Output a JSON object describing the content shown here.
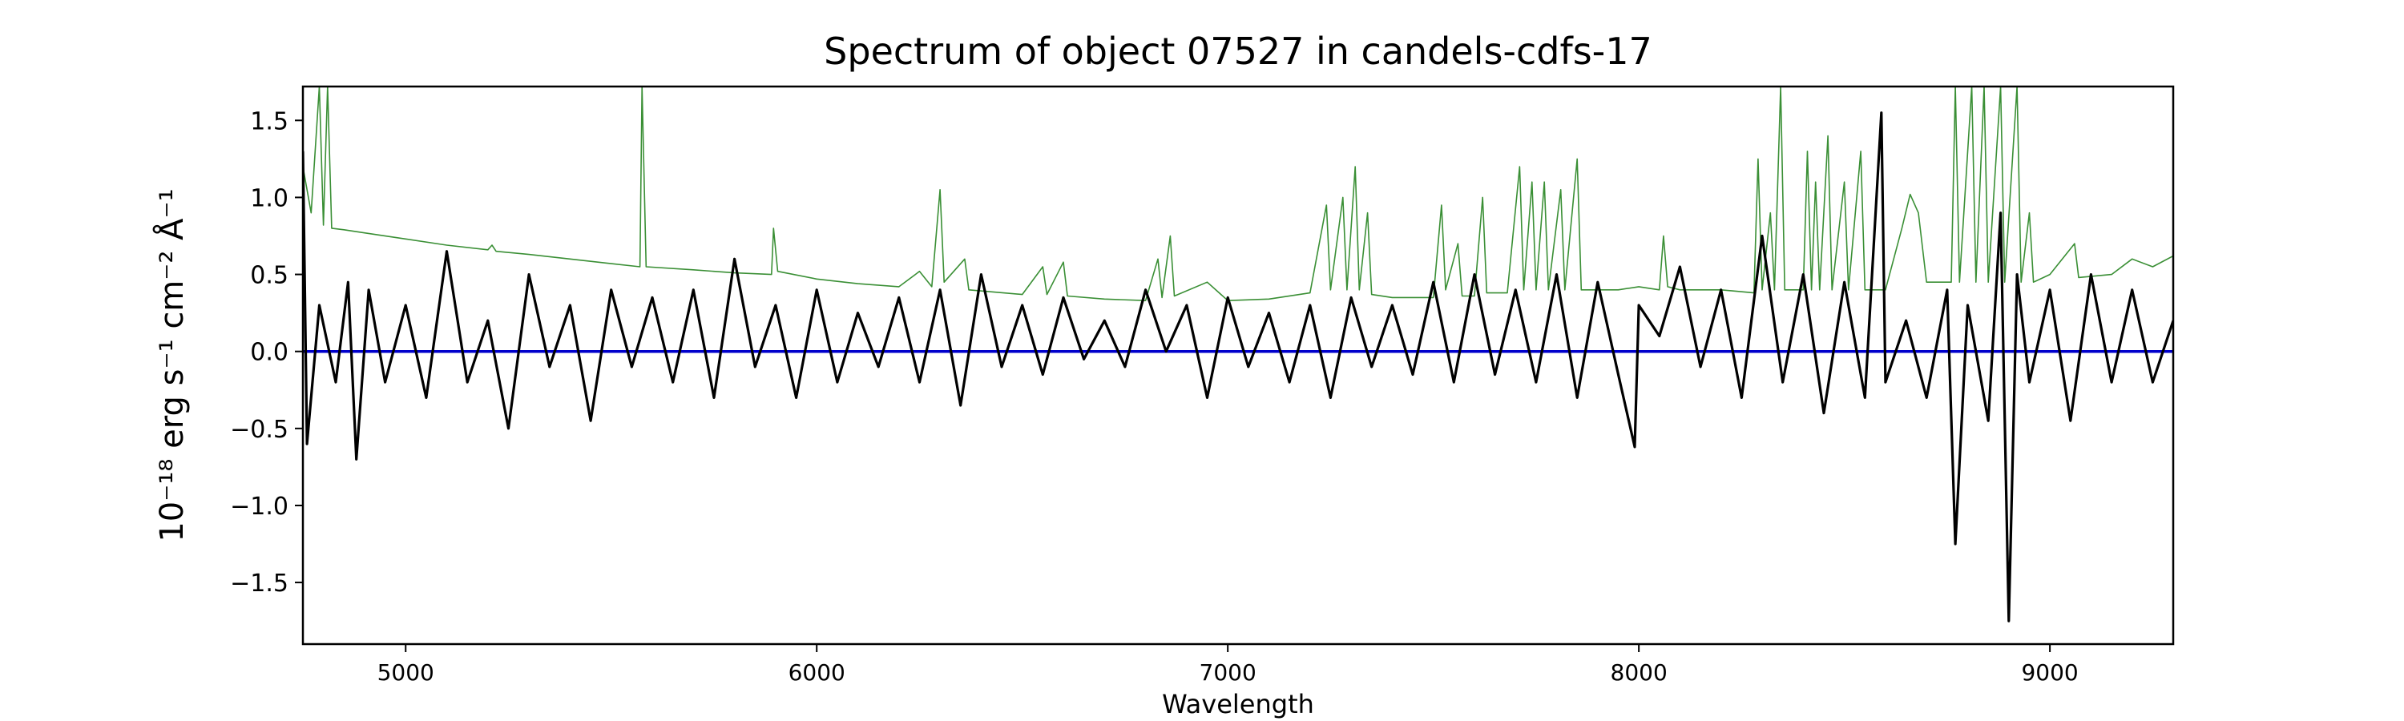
{
  "chart_data": {
    "type": "line",
    "title": "Spectrum of object 07527 in candels-cdfs-17",
    "xlabel": "Wavelength",
    "ylabel": "10⁻¹⁸ erg s⁻¹ cm⁻² Å⁻¹",
    "xlim": [
      4750,
      9300
    ],
    "ylim": [
      -1.9,
      1.72
    ],
    "x_ticks": [
      5000,
      6000,
      7000,
      8000,
      9000
    ],
    "x_tick_labels": [
      "5000",
      "6000",
      "7000",
      "8000",
      "9000"
    ],
    "y_ticks": [
      -1.5,
      -1.0,
      -0.5,
      0.0,
      0.5,
      1.0,
      1.5
    ],
    "y_tick_labels": [
      "−1.5",
      "−1.0",
      "−0.5",
      "0.0",
      "0.5",
      "1.0",
      "1.5"
    ],
    "grid": false,
    "legend": "none",
    "series": [
      {
        "color": "#3a8f35",
        "values": [
          [
            4750,
            1.2
          ],
          [
            4770,
            0.9
          ],
          [
            4790,
            1.72
          ],
          [
            4800,
            0.82
          ],
          [
            4810,
            1.72
          ],
          [
            4820,
            0.8
          ],
          [
            4850,
            0.79
          ],
          [
            4900,
            0.77
          ],
          [
            5000,
            0.73
          ],
          [
            5100,
            0.69
          ],
          [
            5200,
            0.66
          ],
          [
            5210,
            0.69
          ],
          [
            5220,
            0.65
          ],
          [
            5300,
            0.63
          ],
          [
            5400,
            0.6
          ],
          [
            5500,
            0.57
          ],
          [
            5570,
            0.55
          ],
          [
            5575,
            1.72
          ],
          [
            5585,
            0.55
          ],
          [
            5700,
            0.53
          ],
          [
            5800,
            0.51
          ],
          [
            5890,
            0.5
          ],
          [
            5895,
            0.8
          ],
          [
            5905,
            0.52
          ],
          [
            6000,
            0.47
          ],
          [
            6100,
            0.44
          ],
          [
            6200,
            0.42
          ],
          [
            6250,
            0.52
          ],
          [
            6280,
            0.42
          ],
          [
            6300,
            1.05
          ],
          [
            6310,
            0.45
          ],
          [
            6360,
            0.6
          ],
          [
            6370,
            0.4
          ],
          [
            6500,
            0.37
          ],
          [
            6550,
            0.55
          ],
          [
            6560,
            0.37
          ],
          [
            6600,
            0.58
          ],
          [
            6610,
            0.36
          ],
          [
            6700,
            0.34
          ],
          [
            6800,
            0.33
          ],
          [
            6830,
            0.6
          ],
          [
            6840,
            0.35
          ],
          [
            6860,
            0.75
          ],
          [
            6870,
            0.36
          ],
          [
            6950,
            0.45
          ],
          [
            7000,
            0.33
          ],
          [
            7100,
            0.34
          ],
          [
            7200,
            0.38
          ],
          [
            7240,
            0.95
          ],
          [
            7250,
            0.4
          ],
          [
            7280,
            1.0
          ],
          [
            7290,
            0.4
          ],
          [
            7310,
            1.2
          ],
          [
            7320,
            0.4
          ],
          [
            7340,
            0.9
          ],
          [
            7350,
            0.37
          ],
          [
            7400,
            0.35
          ],
          [
            7500,
            0.35
          ],
          [
            7520,
            0.95
          ],
          [
            7530,
            0.4
          ],
          [
            7560,
            0.7
          ],
          [
            7570,
            0.36
          ],
          [
            7600,
            0.36
          ],
          [
            7620,
            1.0
          ],
          [
            7630,
            0.38
          ],
          [
            7680,
            0.38
          ],
          [
            7710,
            1.2
          ],
          [
            7720,
            0.4
          ],
          [
            7740,
            1.1
          ],
          [
            7750,
            0.4
          ],
          [
            7770,
            1.1
          ],
          [
            7780,
            0.4
          ],
          [
            7810,
            1.05
          ],
          [
            7820,
            0.4
          ],
          [
            7850,
            1.25
          ],
          [
            7860,
            0.4
          ],
          [
            7900,
            0.4
          ],
          [
            7950,
            0.4
          ],
          [
            8000,
            0.42
          ],
          [
            8050,
            0.4
          ],
          [
            8060,
            0.75
          ],
          [
            8070,
            0.42
          ],
          [
            8100,
            0.4
          ],
          [
            8200,
            0.4
          ],
          [
            8280,
            0.38
          ],
          [
            8290,
            1.25
          ],
          [
            8300,
            0.4
          ],
          [
            8320,
            0.9
          ],
          [
            8330,
            0.4
          ],
          [
            8345,
            1.72
          ],
          [
            8355,
            0.4
          ],
          [
            8400,
            0.4
          ],
          [
            8410,
            1.3
          ],
          [
            8420,
            0.4
          ],
          [
            8430,
            1.1
          ],
          [
            8440,
            0.4
          ],
          [
            8460,
            1.4
          ],
          [
            8470,
            0.4
          ],
          [
            8500,
            1.1
          ],
          [
            8510,
            0.4
          ],
          [
            8540,
            1.3
          ],
          [
            8550,
            0.4
          ],
          [
            8600,
            0.4
          ],
          [
            8640,
            0.8
          ],
          [
            8660,
            1.02
          ],
          [
            8680,
            0.9
          ],
          [
            8700,
            0.45
          ],
          [
            8760,
            0.45
          ],
          [
            8770,
            1.72
          ],
          [
            8780,
            0.45
          ],
          [
            8810,
            1.72
          ],
          [
            8820,
            0.45
          ],
          [
            8840,
            1.72
          ],
          [
            8850,
            0.45
          ],
          [
            8880,
            1.72
          ],
          [
            8890,
            0.45
          ],
          [
            8920,
            1.72
          ],
          [
            8930,
            0.45
          ],
          [
            8950,
            0.9
          ],
          [
            8960,
            0.45
          ],
          [
            9000,
            0.5
          ],
          [
            9060,
            0.7
          ],
          [
            9070,
            0.48
          ],
          [
            9150,
            0.5
          ],
          [
            9200,
            0.6
          ],
          [
            9250,
            0.55
          ],
          [
            9300,
            0.62
          ]
        ]
      },
      {
        "color": "#0000cc",
        "values": [
          [
            4750,
            0.0
          ],
          [
            9300,
            0.0
          ]
        ]
      },
      {
        "color": "#000000",
        "values": [
          [
            4750,
            1.3
          ],
          [
            4760,
            -0.6
          ],
          [
            4790,
            0.3
          ],
          [
            4830,
            -0.2
          ],
          [
            4860,
            0.45
          ],
          [
            4880,
            -0.7
          ],
          [
            4910,
            0.4
          ],
          [
            4950,
            -0.2
          ],
          [
            5000,
            0.3
          ],
          [
            5050,
            -0.3
          ],
          [
            5100,
            0.65
          ],
          [
            5150,
            -0.2
          ],
          [
            5200,
            0.2
          ],
          [
            5250,
            -0.5
          ],
          [
            5300,
            0.5
          ],
          [
            5350,
            -0.1
          ],
          [
            5400,
            0.3
          ],
          [
            5450,
            -0.45
          ],
          [
            5500,
            0.4
          ],
          [
            5550,
            -0.1
          ],
          [
            5600,
            0.35
          ],
          [
            5650,
            -0.2
          ],
          [
            5700,
            0.4
          ],
          [
            5750,
            -0.3
          ],
          [
            5800,
            0.6
          ],
          [
            5850,
            -0.1
          ],
          [
            5900,
            0.3
          ],
          [
            5950,
            -0.3
          ],
          [
            6000,
            0.4
          ],
          [
            6050,
            -0.2
          ],
          [
            6100,
            0.25
          ],
          [
            6150,
            -0.1
          ],
          [
            6200,
            0.35
          ],
          [
            6250,
            -0.2
          ],
          [
            6300,
            0.4
          ],
          [
            6350,
            -0.35
          ],
          [
            6400,
            0.5
          ],
          [
            6450,
            -0.1
          ],
          [
            6500,
            0.3
          ],
          [
            6550,
            -0.15
          ],
          [
            6600,
            0.35
          ],
          [
            6650,
            -0.05
          ],
          [
            6700,
            0.2
          ],
          [
            6750,
            -0.1
          ],
          [
            6800,
            0.4
          ],
          [
            6850,
            0.0
          ],
          [
            6900,
            0.3
          ],
          [
            6950,
            -0.3
          ],
          [
            7000,
            0.35
          ],
          [
            7050,
            -0.1
          ],
          [
            7100,
            0.25
          ],
          [
            7150,
            -0.2
          ],
          [
            7200,
            0.3
          ],
          [
            7250,
            -0.3
          ],
          [
            7300,
            0.35
          ],
          [
            7350,
            -0.1
          ],
          [
            7400,
            0.3
          ],
          [
            7450,
            -0.15
          ],
          [
            7500,
            0.45
          ],
          [
            7550,
            -0.2
          ],
          [
            7600,
            0.5
          ],
          [
            7650,
            -0.15
          ],
          [
            7700,
            0.4
          ],
          [
            7750,
            -0.2
          ],
          [
            7800,
            0.5
          ],
          [
            7850,
            -0.3
          ],
          [
            7900,
            0.45
          ],
          [
            7950,
            -0.15
          ],
          [
            7990,
            -0.62
          ],
          [
            8000,
            0.3
          ],
          [
            8050,
            0.1
          ],
          [
            8100,
            0.55
          ],
          [
            8150,
            -0.1
          ],
          [
            8200,
            0.4
          ],
          [
            8250,
            -0.3
          ],
          [
            8300,
            0.75
          ],
          [
            8350,
            -0.2
          ],
          [
            8400,
            0.5
          ],
          [
            8450,
            -0.4
          ],
          [
            8500,
            0.45
          ],
          [
            8550,
            -0.3
          ],
          [
            8590,
            1.55
          ],
          [
            8600,
            -0.2
          ],
          [
            8650,
            0.2
          ],
          [
            8700,
            -0.3
          ],
          [
            8750,
            0.4
          ],
          [
            8770,
            -1.25
          ],
          [
            8800,
            0.3
          ],
          [
            8850,
            -0.45
          ],
          [
            8880,
            0.9
          ],
          [
            8900,
            -1.75
          ],
          [
            8920,
            0.5
          ],
          [
            8950,
            -0.2
          ],
          [
            9000,
            0.4
          ],
          [
            9050,
            -0.45
          ],
          [
            9100,
            0.5
          ],
          [
            9150,
            -0.2
          ],
          [
            9200,
            0.4
          ],
          [
            9250,
            -0.2
          ],
          [
            9300,
            0.2
          ]
        ]
      }
    ]
  }
}
